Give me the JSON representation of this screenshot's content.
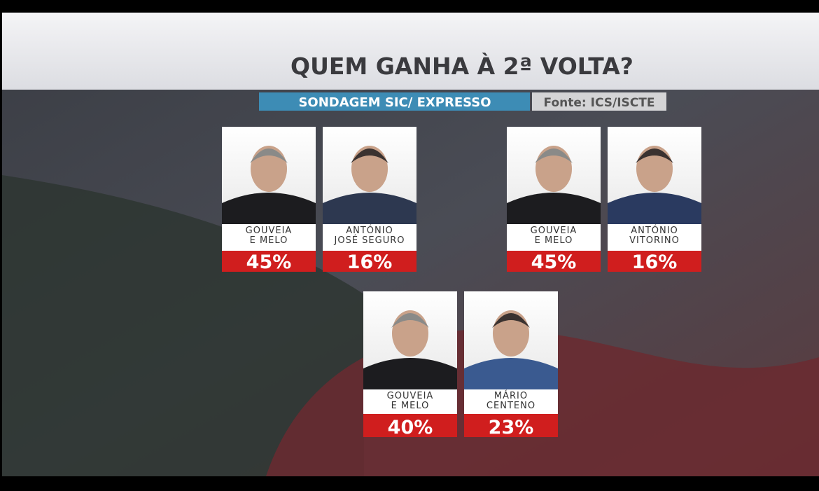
{
  "header": {
    "title": "QUEM GANHA À 2ª VOLTA?",
    "subtitle": "SONDAGEM SIC/ EXPRESSO",
    "source": "Fonte: ICS/ISCTE"
  },
  "matchups": [
    {
      "candidates": [
        {
          "name_lines": [
            "GOUVEIA",
            "E MELO"
          ],
          "percent": "45%"
        },
        {
          "name_lines": [
            "ANTÓNIO",
            "JOSÉ SEGURO"
          ],
          "percent": "16%"
        }
      ]
    },
    {
      "candidates": [
        {
          "name_lines": [
            "GOUVEIA",
            "E MELO"
          ],
          "percent": "45%"
        },
        {
          "name_lines": [
            "ANTÓNIO",
            "VITORINO"
          ],
          "percent": "16%"
        }
      ]
    },
    {
      "candidates": [
        {
          "name_lines": [
            "GOUVEIA",
            "E MELO"
          ],
          "percent": "40%"
        },
        {
          "name_lines": [
            "MÁRIO",
            "CENTENO"
          ],
          "percent": "23%"
        }
      ]
    }
  ]
}
